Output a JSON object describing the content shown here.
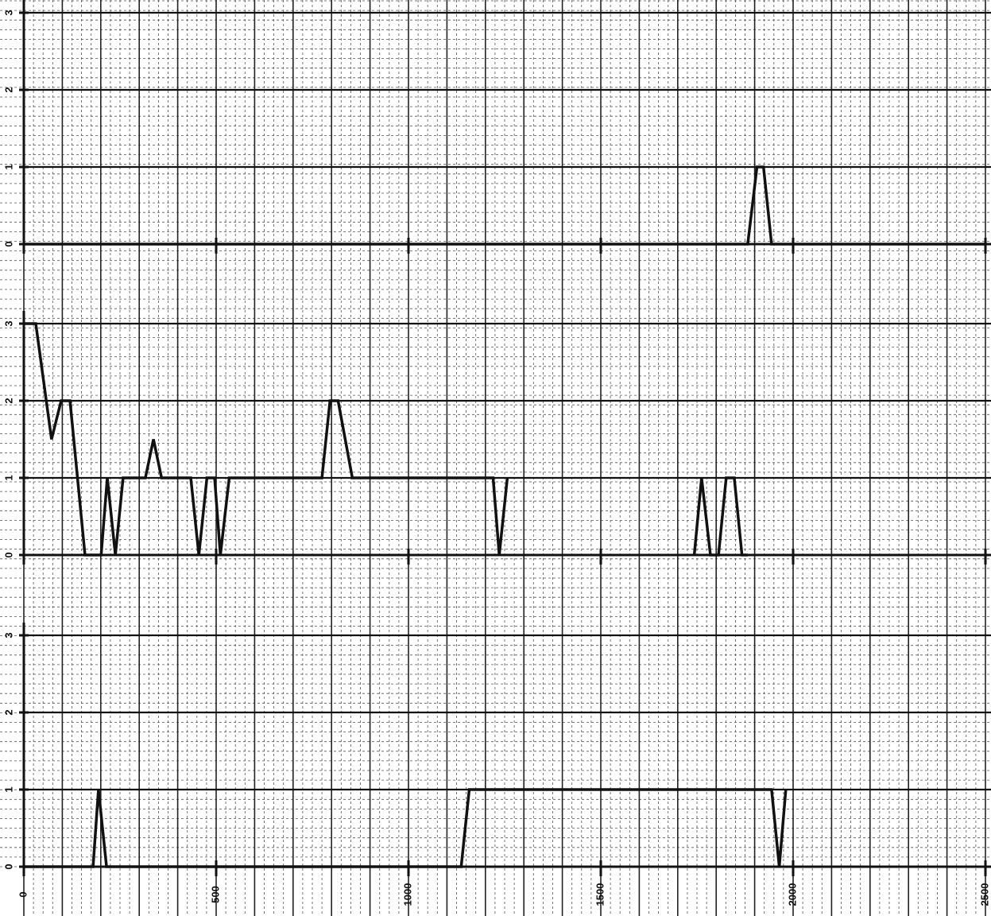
{
  "chart_data": [
    {
      "type": "line",
      "xlim": [
        0,
        2500
      ],
      "xticks": [
        0,
        500,
        1000,
        1500,
        2000,
        2500
      ],
      "ylim": [
        0,
        3
      ],
      "yticks": [
        0,
        1,
        2,
        3
      ],
      "grid": true,
      "x": [
        0,
        1882,
        1906,
        1923,
        1944,
        2500
      ],
      "series": [
        {
          "color": "#111111",
          "values": [
            0,
            0,
            1,
            1,
            0,
            0
          ]
        }
      ]
    },
    {
      "type": "line",
      "xlim": [
        0,
        2500
      ],
      "xticks": [
        0,
        500,
        1000,
        1500,
        2000,
        2500
      ],
      "ylim": [
        0,
        3
      ],
      "yticks": [
        0,
        1,
        2,
        3
      ],
      "grid": true,
      "x": [
        0,
        31,
        72,
        97,
        120,
        159,
        201,
        217,
        238,
        258,
        316,
        337,
        358,
        434,
        455,
        476,
        496,
        511,
        534,
        775,
        796,
        817,
        854,
        1220,
        1236,
        1257,
        null,
        1743,
        1762,
        1785,
        1806,
        1826,
        1847,
        1867,
        1882
      ],
      "series": [
        {
          "color": "#111111",
          "values": [
            3,
            3,
            1.5,
            2,
            2,
            0,
            0,
            1,
            0,
            1,
            1,
            1.5,
            1,
            1,
            0,
            1,
            1,
            0,
            1,
            1,
            2,
            2,
            1,
            1,
            0,
            1,
            null,
            0,
            1,
            0,
            0,
            1,
            1,
            0,
            0
          ]
        }
      ]
    },
    {
      "type": "line",
      "xlim": [
        0,
        2500
      ],
      "xticks": [
        0,
        500,
        1000,
        1500,
        2000,
        2500
      ],
      "ylim": [
        0,
        3
      ],
      "yticks": [
        0,
        1,
        2,
        3
      ],
      "grid": true,
      "x": [
        0,
        180,
        194,
        215,
        1137,
        1158,
        1944,
        1964,
        1981
      ],
      "series": [
        {
          "color": "#111111",
          "values": [
            0,
            0,
            1,
            0,
            0,
            1,
            1,
            0,
            1
          ]
        }
      ]
    }
  ]
}
